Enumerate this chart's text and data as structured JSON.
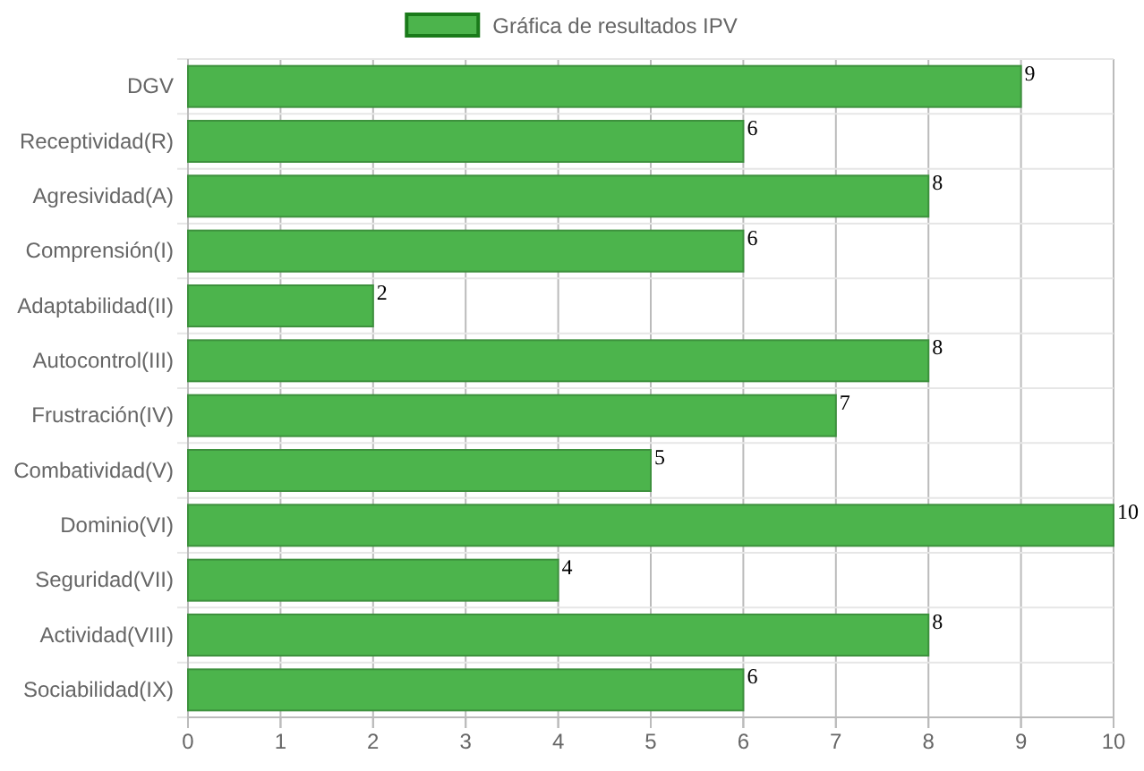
{
  "chart_data": {
    "type": "bar",
    "orientation": "horizontal",
    "categories": [
      "DGV",
      "Receptividad(R)",
      "Agresividad(A)",
      "Comprensión(I)",
      "Adaptabilidad(II)",
      "Autocontrol(III)",
      "Frustración(IV)",
      "Combatividad(V)",
      "Dominio(VI)",
      "Seguridad(VII)",
      "Actividad(VIII)",
      "Sociabilidad(IX)"
    ],
    "series": [
      {
        "name": "Gráfica de resultados IPV",
        "color": "#4cb44c",
        "values": [
          9,
          6,
          8,
          6,
          2,
          8,
          7,
          5,
          10,
          4,
          8,
          6
        ]
      }
    ],
    "xlim": [
      0,
      10
    ],
    "xticks": [
      0,
      1,
      2,
      3,
      4,
      5,
      6,
      7,
      8,
      9,
      10
    ],
    "grid": true,
    "legend": "top",
    "data_labels": true
  }
}
